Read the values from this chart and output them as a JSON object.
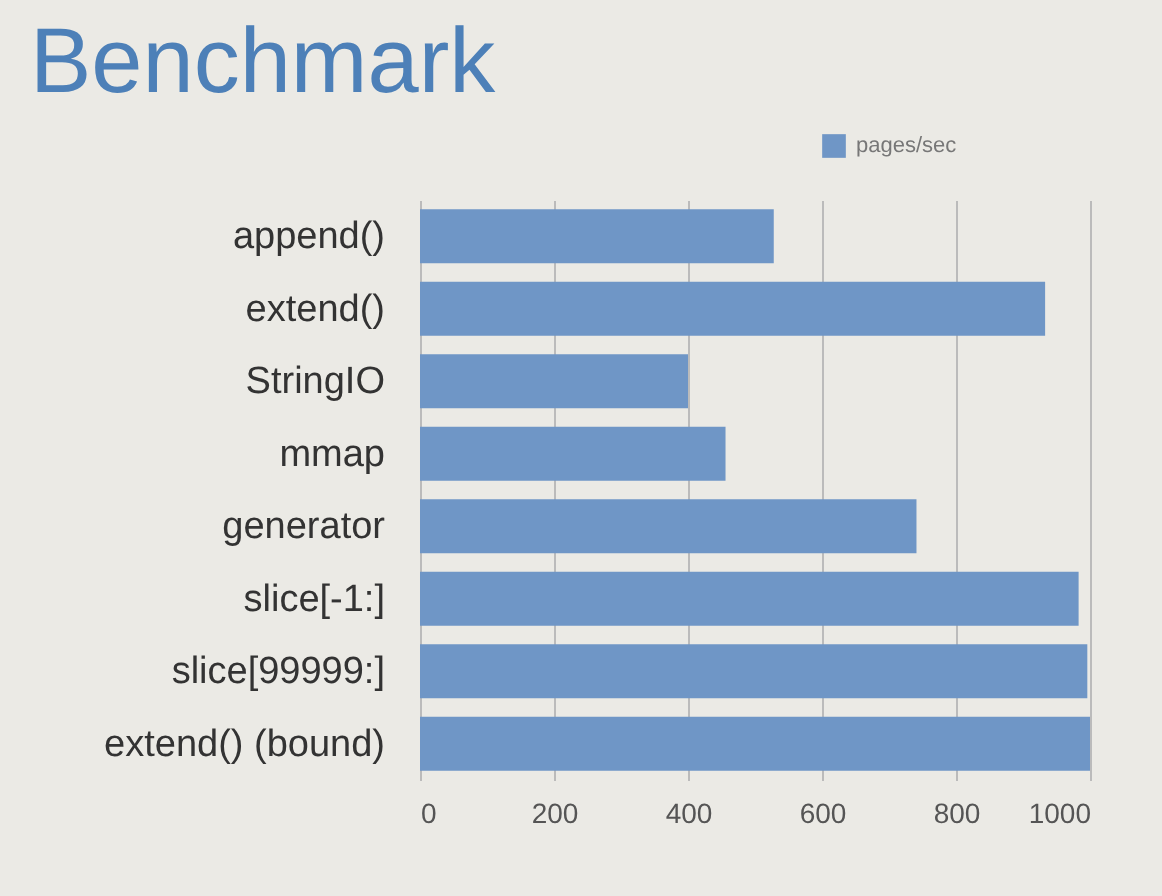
{
  "chart_data": {
    "type": "bar",
    "orientation": "horizontal",
    "title": "Benchmark",
    "categories": [
      "append()",
      "extend()",
      "StringIO",
      "mmap",
      "generator",
      "slice[-1:]",
      "slice[99999:]",
      "extend() (bound)"
    ],
    "series": [
      {
        "name": "pages/sec",
        "color": "#6f96c6",
        "values": [
          528,
          933,
          400,
          456,
          741,
          983,
          996,
          1000
        ]
      }
    ],
    "xlim": [
      0,
      1000
    ],
    "xticks": [
      0,
      200,
      400,
      600,
      800,
      1000
    ],
    "grid": "x",
    "legend": "top right"
  }
}
